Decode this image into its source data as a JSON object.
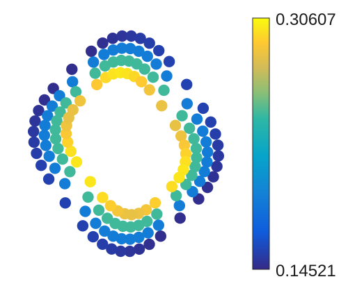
{
  "chart_data": {
    "type": "scatter",
    "title": "",
    "xlabel": "",
    "ylabel": "",
    "grid": false,
    "colormap": "parula",
    "colorbar": {
      "min": 0.14521,
      "max": 0.30607,
      "min_label": "0.14521",
      "max_label": "0.30607",
      "placement": "right"
    },
    "ring": {
      "layers": 4,
      "layer_values": [
        0.147,
        0.19,
        0.245,
        0.3
      ],
      "angle_samples": 40
    }
  }
}
